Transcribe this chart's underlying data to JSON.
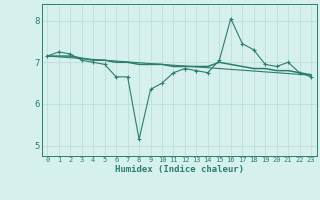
{
  "x": [
    0,
    1,
    2,
    3,
    4,
    5,
    6,
    7,
    8,
    9,
    10,
    11,
    12,
    13,
    14,
    15,
    16,
    17,
    18,
    19,
    20,
    21,
    22,
    23
  ],
  "line1_y": [
    7.15,
    7.25,
    7.2,
    7.05,
    7.0,
    6.95,
    6.65,
    6.65,
    5.15,
    6.35,
    6.5,
    6.75,
    6.85,
    6.8,
    6.75,
    7.05,
    8.05,
    7.45,
    7.3,
    6.95,
    6.9,
    7.0,
    6.75,
    6.65
  ],
  "line2_y": [
    7.15,
    7.15,
    7.15,
    7.1,
    7.05,
    7.05,
    7.0,
    7.0,
    6.95,
    6.95,
    6.95,
    6.9,
    6.9,
    6.9,
    6.9,
    7.0,
    6.95,
    6.9,
    6.85,
    6.85,
    6.8,
    6.8,
    6.75,
    6.7
  ],
  "line3_y": [
    7.15,
    7.13,
    7.11,
    7.09,
    7.07,
    7.05,
    7.03,
    7.01,
    6.99,
    6.97,
    6.95,
    6.93,
    6.91,
    6.89,
    6.87,
    6.85,
    6.83,
    6.81,
    6.79,
    6.77,
    6.75,
    6.73,
    6.71,
    6.69
  ],
  "line_color": "#2d7d6e",
  "bg_color": "#d6f0ee",
  "grid_color": "#c0ddd9",
  "xlabel": "Humidex (Indice chaleur)",
  "yticks": [
    5,
    6,
    7,
    8
  ],
  "xticks": [
    0,
    1,
    2,
    3,
    4,
    5,
    6,
    7,
    8,
    9,
    10,
    11,
    12,
    13,
    14,
    15,
    16,
    17,
    18,
    19,
    20,
    21,
    22,
    23
  ],
  "xlim": [
    -0.5,
    23.5
  ],
  "ylim": [
    4.75,
    8.4
  ]
}
